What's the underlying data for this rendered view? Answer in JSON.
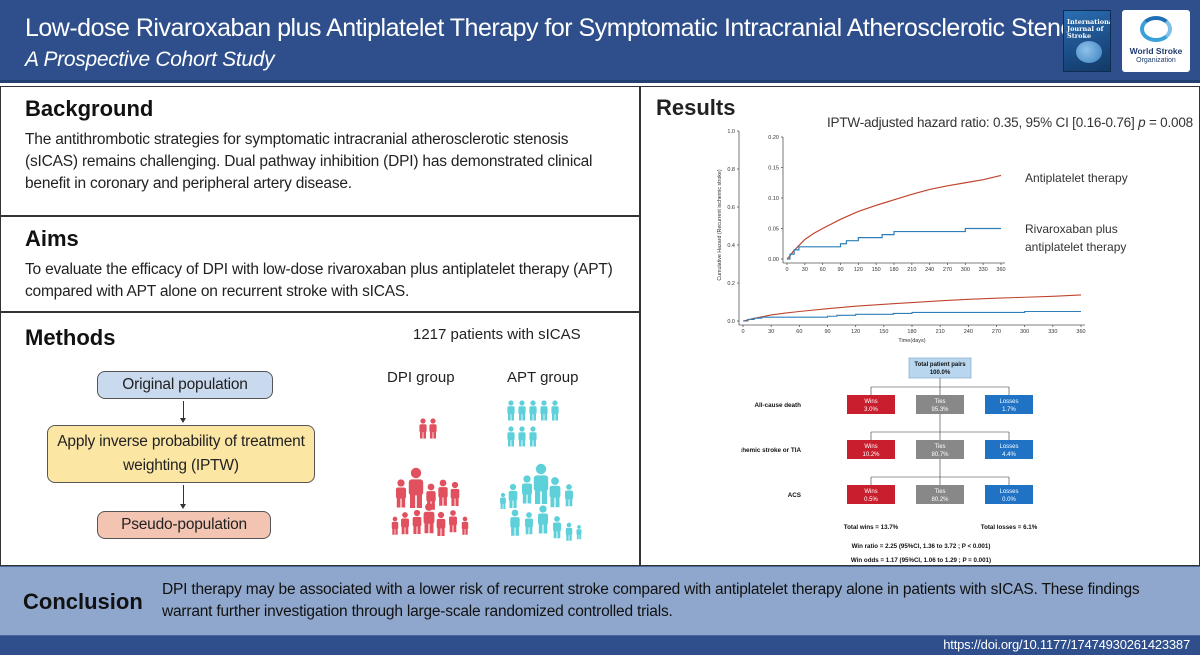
{
  "header": {
    "title": "Low-dose Rivaroxaban plus Antiplatelet Therapy for Symptomatic Intracranial Atherosclerotic Stenosis",
    "subtitle": "A Prospective Cohort Study",
    "journal_cover_text": "International Journal of Stroke",
    "logo_line1": "World Stroke",
    "logo_line2": "Organization"
  },
  "background": {
    "heading": "Background",
    "text": "The antithrombotic strategies for symptomatic intracranial atherosclerotic stenosis (sICAS) remains challenging. Dual pathway inhibition (DPI) has demonstrated clinical benefit in coronary and peripheral artery disease."
  },
  "aims": {
    "heading": "Aims",
    "text": "To evaluate the efficacy of DPI with low-dose rivaroxaban plus antiplatelet therapy (APT) compared with APT alone on recurrent stroke with sICAS."
  },
  "methods": {
    "heading": "Methods",
    "flow": {
      "step1": "Original population",
      "step2": "Apply inverse probability of treatment weighting (IPTW)",
      "step3": "Pseudo-population"
    },
    "patients": "1217 patients with sICAS",
    "dpi_group": "DPI group",
    "apt_group": "APT group",
    "colors": {
      "dpi": "#e0505e",
      "apt": "#5ed0da"
    }
  },
  "results": {
    "heading": "Results",
    "hr_prefix": "IPTW-adjusted hazard ratio: 0.35, 95% CI [0.16-0.76] ",
    "hr_p": "p",
    "hr_suffix": " = 0.008",
    "chart_data": {
      "type": "line",
      "ylabel": "Cumulative Hazard (Recurrent ischemic stroke)",
      "xlabel": "Time(days)",
      "outer_xticks": [
        0,
        30,
        60,
        90,
        120,
        150,
        180,
        210,
        240,
        270,
        300,
        330,
        360
      ],
      "outer_yticks": [
        "0.0",
        "0.2",
        "0.4",
        "0.6",
        "0.8",
        "1.0"
      ],
      "outer_ylim": [
        0,
        1
      ],
      "inset_xticks": [
        0,
        30,
        60,
        90,
        120,
        150,
        180,
        210,
        240,
        270,
        300,
        330,
        360
      ],
      "inset_yticks": [
        "0.00",
        "0.05",
        "0.10",
        "0.15",
        "0.20"
      ],
      "inset_ylim": [
        0,
        0.2
      ],
      "series": [
        {
          "name": "Antiplatelet therapy",
          "color": "#c0452e",
          "x": [
            0,
            5,
            10,
            20,
            30,
            45,
            60,
            90,
            120,
            150,
            180,
            210,
            240,
            270,
            300,
            330,
            360
          ],
          "y": [
            0,
            0.005,
            0.012,
            0.022,
            0.032,
            0.042,
            0.05,
            0.065,
            0.078,
            0.088,
            0.097,
            0.106,
            0.114,
            0.12,
            0.125,
            0.13,
            0.137
          ]
        },
        {
          "name": "Rivaroxaban plus antiplatelet therapy",
          "color": "#2e7fb8",
          "step_x": [
            0,
            5,
            12,
            20,
            60,
            90,
            100,
            120,
            160,
            180,
            240,
            270,
            300,
            360
          ],
          "step_y": [
            0,
            0.008,
            0.015,
            0.02,
            0.02,
            0.025,
            0.03,
            0.035,
            0.04,
            0.045,
            0.045,
            0.045,
            0.05,
            0.05
          ]
        }
      ],
      "legend": [
        "Antiplatelet therapy",
        "Rivaroxaban plus",
        "antiplatelet therapy"
      ]
    },
    "win_chart": {
      "top_label": "Total patient pairs",
      "top_value": "100.0%",
      "rows": [
        {
          "label": "All-cause death",
          "wins": "3.0%",
          "ties": "95.3%",
          "losses": "1.7%"
        },
        {
          "label": "Ischemic stroke or TIA",
          "wins": "10.2%",
          "ties": "80.7%",
          "losses": "4.4%"
        },
        {
          "label": "ACS",
          "wins": "0.5%",
          "ties": "80.2%",
          "losses": "0.0%"
        }
      ],
      "wins_label": "Wins",
      "ties_label": "Ties",
      "losses_label": "Losses",
      "total_wins": "Total wins = 13.7%",
      "total_losses": "Total losses = 6.1%",
      "win_ratio": "Win ratio = 2.25 (95%CI, 1.36 to 3.72 ; P < 0.001)",
      "win_odds": "Win odds = 1.17 (95%CI, 1.06 to 1.29 ; P = 0.001)",
      "colors": {
        "wins": "#c81e2e",
        "ties": "#888888",
        "losses": "#1f72c4",
        "top": "#b8d6ee"
      }
    }
  },
  "conclusion": {
    "heading": "Conclusion",
    "text": "DPI therapy may be associated with a lower risk of recurrent stroke compared with antiplatelet therapy alone in patients with sICAS. These findings warrant further investigation through large-scale randomized controlled trials."
  },
  "footer": {
    "doi": "https://doi.org/10.1177/17474930261423387"
  }
}
